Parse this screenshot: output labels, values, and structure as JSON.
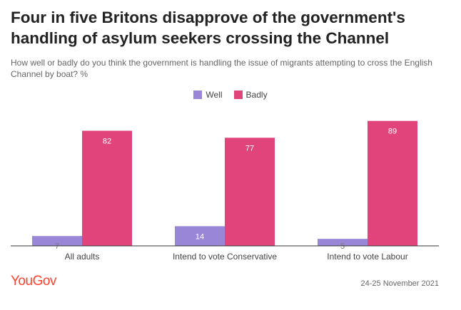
{
  "chart_data": {
    "type": "bar",
    "title": "Four in five Britons disapprove of the government's handling of asylum seekers crossing the Channel",
    "subtitle": "How well or badly do you think the government is handling the issue of migrants attempting to cross the English Channel by boat? %",
    "categories": [
      "All adults",
      "Intend to vote Conservative",
      "Intend to vote Labour"
    ],
    "series": [
      {
        "name": "Well",
        "color": "#9a86d6",
        "values": [
          7,
          14,
          5
        ]
      },
      {
        "name": "Badly",
        "color": "#e0447a",
        "values": [
          82,
          77,
          89
        ]
      }
    ],
    "ylim": [
      0,
      100
    ],
    "legend_position": "top-center",
    "grid": false
  },
  "footer": {
    "brand": "YouGov",
    "date": "24-25 November 2021"
  }
}
